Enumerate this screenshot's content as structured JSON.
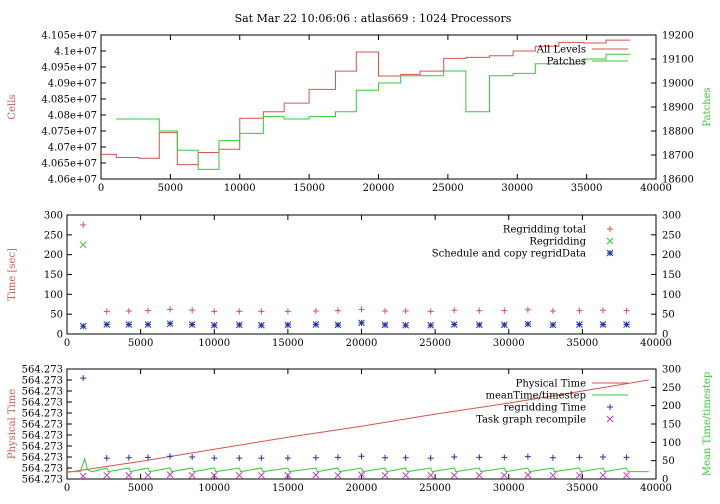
{
  "title": "Sat Mar 22 10:06:06 : atlas669 : 1024 Processors",
  "colors": {
    "red": "#d9534f",
    "green": "#33cc33",
    "blue": "#2233aa",
    "magenta": "#cc33cc",
    "frame": "#000000"
  },
  "chart_data": [
    {
      "type": "line",
      "ylabel": "Cells",
      "y2label": "Patches",
      "xlim": [
        0,
        40000
      ],
      "ylim": [
        40600000,
        41050000
      ],
      "y2lim": [
        18600,
        19200
      ],
      "xticks": [
        0,
        5000,
        10000,
        15000,
        20000,
        25000,
        30000,
        35000,
        40000
      ],
      "yticks": [
        "4.06e+07",
        "4.065e+07",
        "4.07e+07",
        "4.075e+07",
        "4.08e+07",
        "4.085e+07",
        "4.09e+07",
        "4.095e+07",
        "4.1e+07",
        "4.105e+07"
      ],
      "yticks_values": [
        40600000,
        40650000,
        40700000,
        40750000,
        40800000,
        40850000,
        40900000,
        40950000,
        41000000,
        41050000
      ],
      "y2ticks": [
        18600,
        18700,
        18800,
        18900,
        19000,
        19100,
        19200
      ],
      "legend": "top-right",
      "series": [
        {
          "name": "All Levels",
          "color": "red",
          "axis": "y",
          "step": true,
          "x": [
            0,
            1100,
            2700,
            4200,
            5500,
            7000,
            8500,
            10000,
            11700,
            13200,
            15000,
            16900,
            18400,
            20000,
            21600,
            23000,
            24700,
            26300,
            28000,
            29700,
            31300,
            33000,
            34800,
            36400,
            38000
          ],
          "y": [
            40677000,
            40667000,
            40665000,
            40745000,
            40645000,
            40683000,
            40693000,
            40790000,
            40810000,
            40837000,
            40880000,
            40937000,
            40997000,
            40922000,
            40927000,
            40937000,
            40977000,
            40980000,
            40985000,
            41000000,
            41015000,
            41027000,
            41025000,
            41034000,
            41034000
          ]
        },
        {
          "name": "Patches",
          "color": "green",
          "axis": "y2",
          "step": true,
          "x": [
            1100,
            2700,
            4200,
            5500,
            7000,
            8500,
            10000,
            11700,
            13200,
            15000,
            16900,
            18400,
            20000,
            21600,
            23000,
            24700,
            26300,
            28000,
            29700,
            31300,
            33000,
            34800,
            36400,
            38000
          ],
          "y": [
            18850,
            18850,
            18800,
            18720,
            18640,
            18760,
            18790,
            18860,
            18850,
            18860,
            18880,
            18970,
            19000,
            19030,
            19030,
            19050,
            18880,
            19030,
            19040,
            19080,
            19080,
            19100,
            19120,
            19120
          ]
        }
      ]
    },
    {
      "type": "scatter",
      "ylabel": "Time [sec]",
      "xlim": [
        0,
        40000
      ],
      "ylim": [
        0,
        300
      ],
      "xticks": [
        0,
        5000,
        10000,
        15000,
        20000,
        25000,
        30000,
        35000,
        40000
      ],
      "yticks": [
        0,
        50,
        100,
        150,
        200,
        250,
        300
      ],
      "legend": "top-right",
      "series": [
        {
          "name": "Regridding total",
          "color": "red",
          "marker": "+",
          "x": [
            1100,
            2700,
            4200,
            5500,
            7000,
            8500,
            10000,
            11700,
            13200,
            15000,
            16900,
            18400,
            20000,
            21600,
            23000,
            24700,
            26300,
            28000,
            29700,
            31300,
            33000,
            34800,
            36400,
            38000
          ],
          "y": [
            275,
            57,
            58,
            59,
            62,
            60,
            57,
            57,
            57,
            57,
            58,
            59,
            62,
            58,
            58,
            57,
            60,
            59,
            59,
            61,
            58,
            59,
            60,
            59
          ]
        },
        {
          "name": "Regridding",
          "color": "green",
          "marker": "x",
          "x": [
            1100
          ],
          "y": [
            225
          ]
        },
        {
          "name": "Schedule and copy regridData",
          "color": "blue",
          "marker": "*",
          "x": [
            1100,
            2700,
            4200,
            5500,
            7000,
            8500,
            10000,
            11700,
            13200,
            15000,
            16900,
            18400,
            20000,
            21600,
            23000,
            24700,
            26300,
            28000,
            29700,
            31300,
            33000,
            34800,
            36400,
            38000
          ],
          "y": [
            20,
            24,
            24,
            24,
            26,
            24,
            22,
            23,
            22,
            23,
            24,
            23,
            28,
            23,
            22,
            22,
            24,
            23,
            23,
            25,
            23,
            24,
            24,
            24
          ]
        }
      ]
    },
    {
      "type": "line",
      "ylabel": "Physical Time",
      "y2label": "Mean Time/timestep",
      "xlim": [
        0,
        40000
      ],
      "ylim": [
        0,
        10
      ],
      "y2lim": [
        0,
        300
      ],
      "xticks": [
        0,
        5000,
        10000,
        15000,
        20000,
        25000,
        30000,
        35000,
        40000
      ],
      "yticks": [
        "564.273",
        "564.273",
        "564.273",
        "564.273",
        "564.273",
        "564.273",
        "564.273",
        "564.273",
        "564.273",
        "564.273",
        "564.273"
      ],
      "yticks_values": [
        0,
        1,
        2,
        3,
        4,
        5,
        6,
        7,
        8,
        9,
        10
      ],
      "y2ticks": [
        0,
        50,
        100,
        150,
        200,
        250,
        300
      ],
      "legend": "top-right",
      "series": [
        {
          "name": "Physical Time",
          "color": "red",
          "axis": "y",
          "marker": "line",
          "x": [
            0,
            5000,
            10000,
            15000,
            20000,
            25000,
            30000,
            35000,
            39500
          ],
          "y": [
            0.6,
            1.6,
            2.7,
            3.8,
            4.8,
            5.9,
            6.9,
            8.0,
            9.0
          ]
        },
        {
          "name": "meanTime/timestep",
          "color": "green",
          "axis": "y2",
          "marker": "line",
          "x": [
            0,
            900,
            1200,
            1400,
            1700,
            2700,
            2800,
            4200,
            4300,
            5500,
            5600,
            7000,
            7100,
            8500,
            8600,
            10000,
            10100,
            11700,
            11800,
            13200,
            13300,
            15000,
            15100,
            16900,
            17000,
            18400,
            18500,
            20000,
            20100,
            21600,
            21700,
            23000,
            23100,
            24700,
            24800,
            26300,
            26400,
            28000,
            28100,
            29700,
            29800,
            31300,
            31400,
            33000,
            33100,
            34800,
            34900,
            36400,
            36500,
            38000,
            38100,
            39500
          ],
          "y": [
            20,
            20,
            55,
            25,
            20,
            30,
            20,
            30,
            20,
            30,
            20,
            30,
            20,
            30,
            20,
            30,
            20,
            30,
            20,
            30,
            20,
            30,
            20,
            30,
            20,
            30,
            20,
            30,
            20,
            30,
            20,
            30,
            20,
            30,
            20,
            30,
            20,
            30,
            20,
            30,
            20,
            30,
            20,
            30,
            20,
            30,
            20,
            30,
            20,
            30,
            20,
            20
          ]
        },
        {
          "name": "regridding Time",
          "color": "blue",
          "axis": "y2",
          "marker": "+",
          "x": [
            1100,
            2700,
            4200,
            5500,
            7000,
            8500,
            10000,
            11700,
            13200,
            15000,
            16900,
            18400,
            20000,
            21600,
            23000,
            24700,
            26300,
            28000,
            29700,
            31300,
            33000,
            34800,
            36400,
            38000
          ],
          "y": [
            275,
            57,
            58,
            59,
            62,
            60,
            57,
            57,
            57,
            57,
            58,
            59,
            62,
            58,
            58,
            57,
            60,
            59,
            59,
            61,
            58,
            59,
            60,
            59
          ]
        },
        {
          "name": "Task graph recompile",
          "color": "magenta",
          "axis": "y2",
          "marker": "x",
          "x": [
            1100,
            2700,
            4200,
            5500,
            7000,
            8500,
            10000,
            11700,
            13200,
            15000,
            16900,
            18400,
            20000,
            21600,
            23000,
            24700,
            26300,
            28000,
            29700,
            31300,
            33000,
            34800,
            36400,
            38000
          ],
          "y": [
            8,
            10,
            10,
            10,
            12,
            10,
            10,
            10,
            10,
            10,
            11,
            10,
            12,
            10,
            10,
            10,
            10,
            10,
            10,
            11,
            10,
            10,
            10,
            10
          ]
        }
      ]
    }
  ]
}
